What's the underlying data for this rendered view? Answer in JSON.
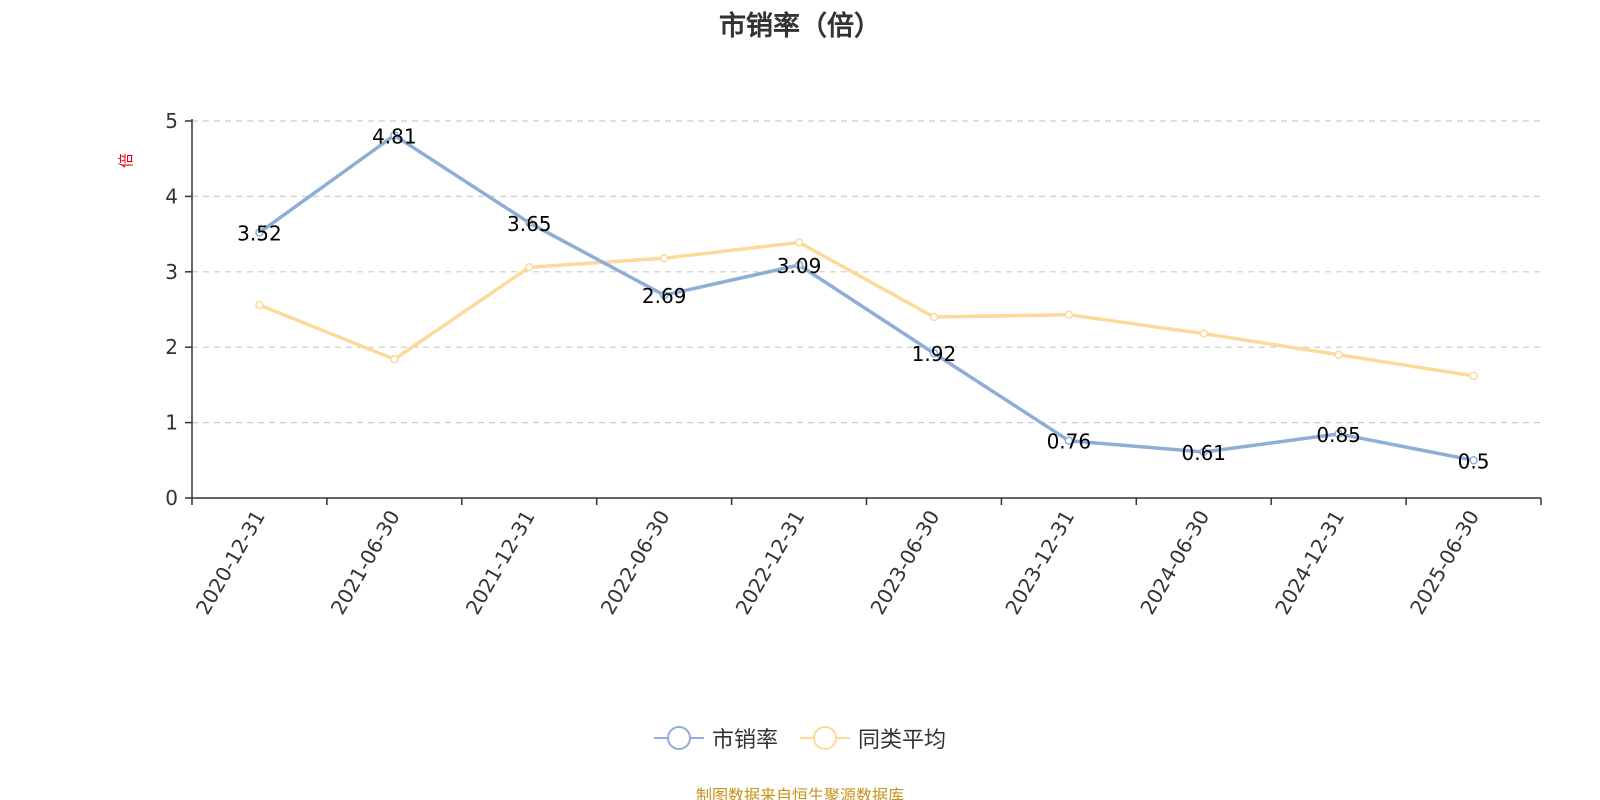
{
  "title": "市销率（倍）",
  "y_unit": "倍",
  "source": "制图数据来自恒生聚源数据库",
  "colors": {
    "series_1": "#8eaed8",
    "series_2": "#fdd99a",
    "axis": "#333333",
    "grid": "#cccccc",
    "y_unit": "#e60012",
    "source": "#c8921e"
  },
  "legend": [
    {
      "label": "市销率"
    },
    {
      "label": "同类平均"
    }
  ],
  "chart_data": {
    "type": "line",
    "title": "市销率（倍）",
    "ylabel": "倍",
    "xlabel": "",
    "categories": [
      "2020-12-31",
      "2021-06-30",
      "2021-12-31",
      "2022-06-30",
      "2022-12-31",
      "2023-06-30",
      "2023-12-31",
      "2024-06-30",
      "2024-12-31",
      "2025-06-30"
    ],
    "ylim": [
      0,
      5
    ],
    "yticks": [
      0,
      1,
      2,
      3,
      4,
      5
    ],
    "grid": true,
    "legend_position": "bottom",
    "series": [
      {
        "name": "市销率",
        "values": [
          3.52,
          4.81,
          3.65,
          2.69,
          3.09,
          1.92,
          0.76,
          0.61,
          0.85,
          0.5
        ],
        "labels": [
          "3.52",
          "4.81",
          "3.65",
          "2.69",
          "3.09",
          "1.92",
          "0.76",
          "0.61",
          "0.85",
          "0.5"
        ]
      },
      {
        "name": "同类平均",
        "values": [
          2.56,
          1.84,
          3.06,
          3.18,
          3.39,
          2.4,
          2.43,
          2.18,
          1.9,
          1.62
        ]
      }
    ]
  }
}
